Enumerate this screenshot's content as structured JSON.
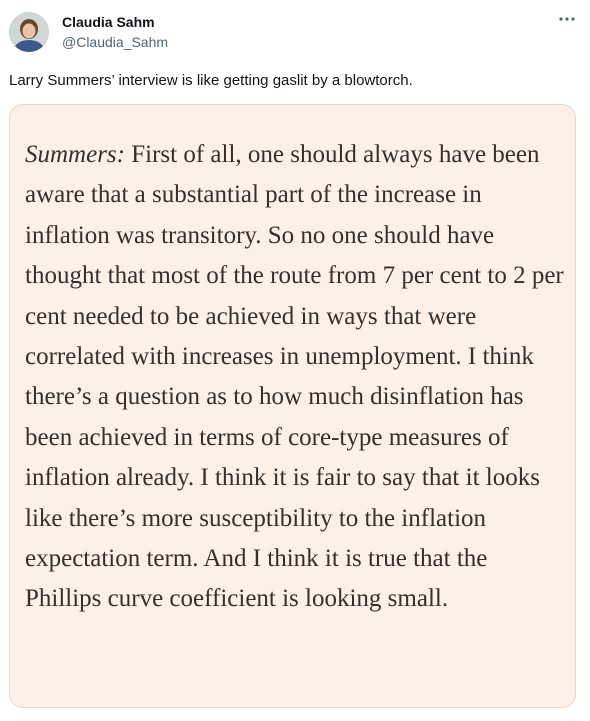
{
  "tweet": {
    "author_name": "Claudia Sahm",
    "author_handle": "@Claudia_Sahm",
    "more_icon": "more-horizontal-icon",
    "text": "Larry Summers’ interview is like getting gaslit by a blowtorch."
  },
  "quote": {
    "speaker": "Summers:",
    "body": " First of all, one should always have been aware that a substantial part of the increase in inflation was transitory. So no one should have thought that most of the route from 7 per cent to 2 per cent needed to be achieved in ways that were correlated with increases in unemployment. I think there’s a question as to how much disinflation has been achieved in terms of core-type measures of inflation already. I think it is fair to say that it looks like there’s more susceptibility to the inflation expectation term. And I think it is true that the Phillips curve coefficient is looking small."
  },
  "colors": {
    "card_background": "#fdf0e6",
    "handle_gray": "#536471",
    "text_dark": "#0f1419"
  }
}
